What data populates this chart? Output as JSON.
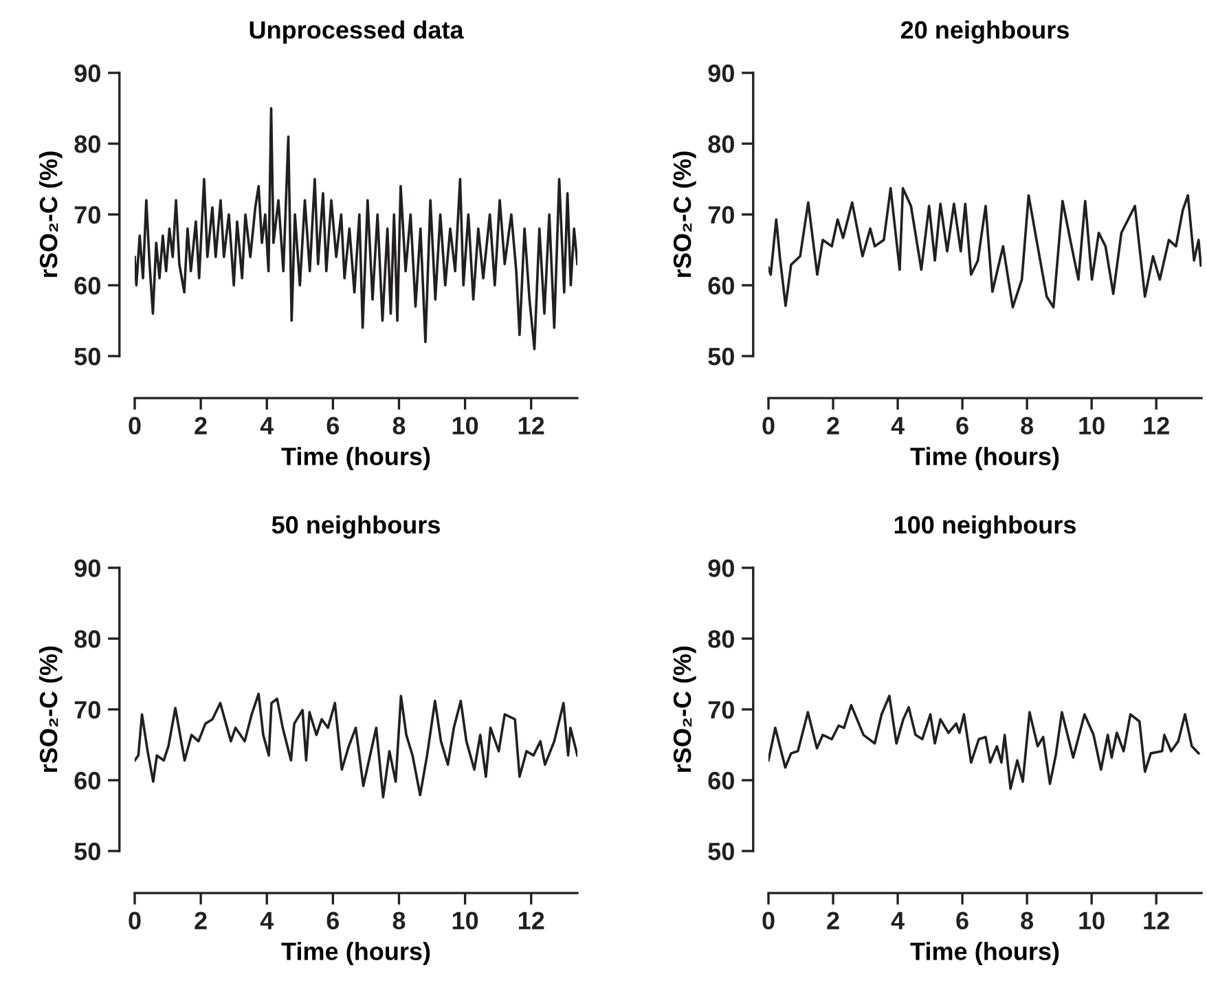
{
  "chart_data": [
    {
      "type": "line",
      "title": "Unprocessed data",
      "xlabel": "Time (hours)",
      "ylabel": "rSO₂-C (%)",
      "xlim": [
        0,
        13.4
      ],
      "ylim": [
        50,
        90
      ],
      "xticks": [
        0,
        2,
        4,
        6,
        8,
        10,
        12
      ],
      "yticks": [
        50,
        60,
        70,
        80,
        90
      ],
      "grid": false,
      "legend": false,
      "series": [
        {
          "color": "#231f20",
          "x": [
            0.0,
            0.05,
            0.15,
            0.25,
            0.35,
            0.45,
            0.55,
            0.65,
            0.75,
            0.85,
            0.95,
            1.05,
            1.15,
            1.25,
            1.35,
            1.5,
            1.6,
            1.7,
            1.85,
            1.95,
            2.1,
            2.2,
            2.35,
            2.45,
            2.6,
            2.7,
            2.85,
            3.0,
            3.1,
            3.25,
            3.35,
            3.5,
            3.65,
            3.75,
            3.85,
            3.95,
            4.05,
            4.13,
            4.2,
            4.35,
            4.5,
            4.65,
            4.75,
            4.85,
            5.0,
            5.15,
            5.3,
            5.45,
            5.55,
            5.7,
            5.8,
            5.95,
            6.1,
            6.25,
            6.35,
            6.5,
            6.65,
            6.8,
            6.9,
            7.05,
            7.2,
            7.35,
            7.5,
            7.65,
            7.75,
            7.85,
            7.95,
            8.05,
            8.2,
            8.35,
            8.5,
            8.65,
            8.8,
            8.95,
            9.1,
            9.25,
            9.4,
            9.55,
            9.7,
            9.85,
            9.95,
            10.1,
            10.25,
            10.4,
            10.55,
            10.75,
            10.9,
            11.05,
            11.2,
            11.4,
            11.55,
            11.65,
            11.8,
            11.95,
            12.1,
            12.25,
            12.4,
            12.55,
            12.7,
            12.85,
            13.0,
            13.1,
            13.2,
            13.3,
            13.4
          ],
          "values": [
            64,
            60,
            67,
            61,
            72,
            63,
            56,
            66,
            61,
            67,
            62,
            68,
            64,
            72,
            63,
            59,
            68,
            62,
            69,
            61,
            75,
            64,
            71,
            64,
            72,
            64,
            70,
            60,
            69,
            61,
            70,
            64,
            71,
            74,
            66,
            70,
            62,
            85,
            66,
            72,
            62,
            81,
            55,
            70,
            60,
            72,
            62,
            75,
            63,
            73,
            62,
            72,
            64,
            70,
            61,
            68,
            59,
            70,
            54,
            72,
            58,
            70,
            55,
            68,
            56,
            70,
            55,
            74,
            62,
            70,
            57,
            68,
            52,
            72,
            58,
            70,
            60,
            68,
            62,
            75,
            60,
            70,
            58,
            68,
            61,
            70,
            60,
            72,
            63,
            70,
            62,
            53,
            68,
            58,
            51,
            68,
            56,
            70,
            54,
            75,
            59,
            73,
            60,
            68,
            63
          ]
        }
      ]
    },
    {
      "type": "line",
      "title": "20 neighbours",
      "xlabel": "Time (hours)",
      "ylabel": "rSO₂-C (%)",
      "xlim": [
        0,
        13.4
      ],
      "ylim": [
        50,
        90
      ],
      "xticks": [
        0,
        2,
        4,
        6,
        8,
        10,
        12
      ],
      "yticks": [
        50,
        60,
        70,
        80,
        90
      ],
      "grid": false,
      "legend": false,
      "series": [
        {
          "color": "#231f20",
          "x": [
            0,
            0.07,
            0.24,
            0.35,
            0.53,
            0.7,
            0.98,
            1.23,
            1.51,
            1.68,
            1.96,
            2.14,
            2.31,
            2.59,
            2.91,
            3.15,
            3.29,
            3.57,
            3.78,
            4.06,
            4.16,
            4.41,
            4.73,
            4.97,
            5.15,
            5.32,
            5.53,
            5.74,
            5.95,
            6.09,
            6.27,
            6.48,
            6.72,
            6.93,
            7.26,
            7.56,
            7.84,
            8.05,
            8.33,
            8.61,
            8.82,
            9.1,
            9.38,
            9.59,
            9.8,
            10.01,
            10.22,
            10.43,
            10.67,
            10.92,
            11.13,
            11.34,
            11.65,
            11.9,
            12.11,
            12.39,
            12.61,
            12.82,
            12.98,
            13.17,
            13.31,
            13.38
          ],
          "values": [
            62.5,
            61.5,
            69.3,
            64.1,
            57.1,
            62.9,
            64.1,
            71.7,
            61.5,
            66.4,
            65.5,
            69.3,
            66.7,
            71.7,
            64.1,
            68.0,
            65.5,
            66.4,
            73.7,
            62.2,
            73.7,
            71.2,
            62.2,
            71.2,
            63.5,
            71.5,
            64.8,
            71.5,
            64.8,
            71.5,
            61.5,
            63.5,
            71.2,
            59.1,
            65.5,
            56.9,
            60.8,
            72.7,
            65.5,
            58.4,
            56.9,
            71.9,
            65.5,
            60.8,
            71.9,
            60.8,
            67.4,
            65.5,
            58.8,
            67.4,
            69.3,
            71.2,
            58.4,
            64.1,
            60.8,
            66.4,
            65.5,
            70.6,
            72.7,
            63.5,
            66.4,
            62.8
          ]
        }
      ]
    },
    {
      "type": "line",
      "title": "50 neighbours",
      "xlabel": "Time (hours)",
      "ylabel": "rSO₂-C (%)",
      "xlim": [
        0,
        13.4
      ],
      "ylim": [
        50,
        90
      ],
      "xticks": [
        0,
        2,
        4,
        6,
        8,
        10,
        12
      ],
      "yticks": [
        50,
        60,
        70,
        80,
        90
      ],
      "grid": false,
      "legend": false,
      "series": [
        {
          "color": "#231f20",
          "x": [
            0,
            0.11,
            0.22,
            0.39,
            0.56,
            0.67,
            0.88,
            1.02,
            1.23,
            1.51,
            1.72,
            1.93,
            2.14,
            2.35,
            2.59,
            2.91,
            3.05,
            3.33,
            3.54,
            3.75,
            3.89,
            4.06,
            4.14,
            4.31,
            4.48,
            4.73,
            4.83,
            5.08,
            5.19,
            5.29,
            5.5,
            5.66,
            5.85,
            6.06,
            6.27,
            6.48,
            6.69,
            6.92,
            7.31,
            7.52,
            7.71,
            7.9,
            8.06,
            8.22,
            8.41,
            8.64,
            8.85,
            9.09,
            9.27,
            9.48,
            9.66,
            9.87,
            10.04,
            10.28,
            10.46,
            10.63,
            10.77,
            11.02,
            11.2,
            11.51,
            11.65,
            11.86,
            12.07,
            12.28,
            12.42,
            12.7,
            12.98,
            13.12,
            13.19,
            13.4
          ],
          "values": [
            62.8,
            63.5,
            69.3,
            64.1,
            59.8,
            63.5,
            62.8,
            64.8,
            70.2,
            62.8,
            66.4,
            65.5,
            68.0,
            68.6,
            70.9,
            65.5,
            67.4,
            65.5,
            69.3,
            72.2,
            66.4,
            63.5,
            70.9,
            71.5,
            67.4,
            62.8,
            68.0,
            69.9,
            62.8,
            69.6,
            66.4,
            68.6,
            67.4,
            70.9,
            61.5,
            64.8,
            67.4,
            59.2,
            67.4,
            57.6,
            64.1,
            59.8,
            71.9,
            66.4,
            63.5,
            57.9,
            63.5,
            71.2,
            65.5,
            62.2,
            67.4,
            71.2,
            65.5,
            61.5,
            66.4,
            60.5,
            67.4,
            64.1,
            69.3,
            68.6,
            60.5,
            64.1,
            63.5,
            65.5,
            62.2,
            65.5,
            70.9,
            63.5,
            67.4,
            63.5
          ]
        }
      ]
    },
    {
      "type": "line",
      "title": "100 neighbours",
      "xlabel": "Time (hours)",
      "ylabel": "rSO₂-C (%)",
      "xlim": [
        0,
        13.4
      ],
      "ylim": [
        50,
        90
      ],
      "xticks": [
        0,
        2,
        4,
        6,
        8,
        10,
        12
      ],
      "yticks": [
        50,
        60,
        70,
        80,
        90
      ],
      "grid": false,
      "legend": false,
      "series": [
        {
          "color": "#231f20",
          "x": [
            0,
            0.21,
            0.52,
            0.7,
            0.91,
            1.22,
            1.5,
            1.68,
            1.96,
            2.17,
            2.34,
            2.56,
            2.94,
            3.29,
            3.5,
            3.74,
            3.96,
            4.17,
            4.34,
            4.55,
            4.76,
            5.01,
            5.15,
            5.32,
            5.57,
            5.81,
            5.91,
            6.05,
            6.27,
            6.51,
            6.72,
            6.86,
            7.07,
            7.21,
            7.31,
            7.49,
            7.7,
            7.87,
            8.08,
            8.33,
            8.5,
            8.71,
            8.89,
            9.08,
            9.43,
            9.78,
            10.06,
            10.29,
            10.5,
            10.62,
            10.78,
            10.99,
            11.2,
            11.48,
            11.65,
            11.83,
            12.18,
            12.25,
            12.46,
            12.68,
            12.89,
            13.1,
            13.31
          ],
          "values": [
            62.8,
            67.4,
            61.8,
            63.8,
            64.1,
            69.6,
            64.5,
            66.4,
            65.8,
            67.7,
            67.4,
            70.6,
            66.4,
            65.2,
            69.3,
            71.9,
            65.2,
            68.6,
            70.3,
            66.4,
            65.8,
            69.3,
            65.2,
            68.6,
            66.7,
            68.0,
            66.7,
            69.3,
            62.5,
            65.8,
            66.1,
            62.5,
            64.8,
            62.5,
            66.4,
            58.8,
            62.8,
            59.8,
            69.6,
            64.8,
            66.1,
            59.5,
            63.5,
            69.6,
            63.2,
            69.3,
            66.4,
            61.5,
            66.4,
            63.2,
            66.7,
            64.1,
            69.3,
            68.3,
            61.2,
            63.8,
            64.1,
            66.4,
            64.1,
            65.5,
            69.3,
            64.8,
            63.8
          ]
        }
      ]
    }
  ]
}
